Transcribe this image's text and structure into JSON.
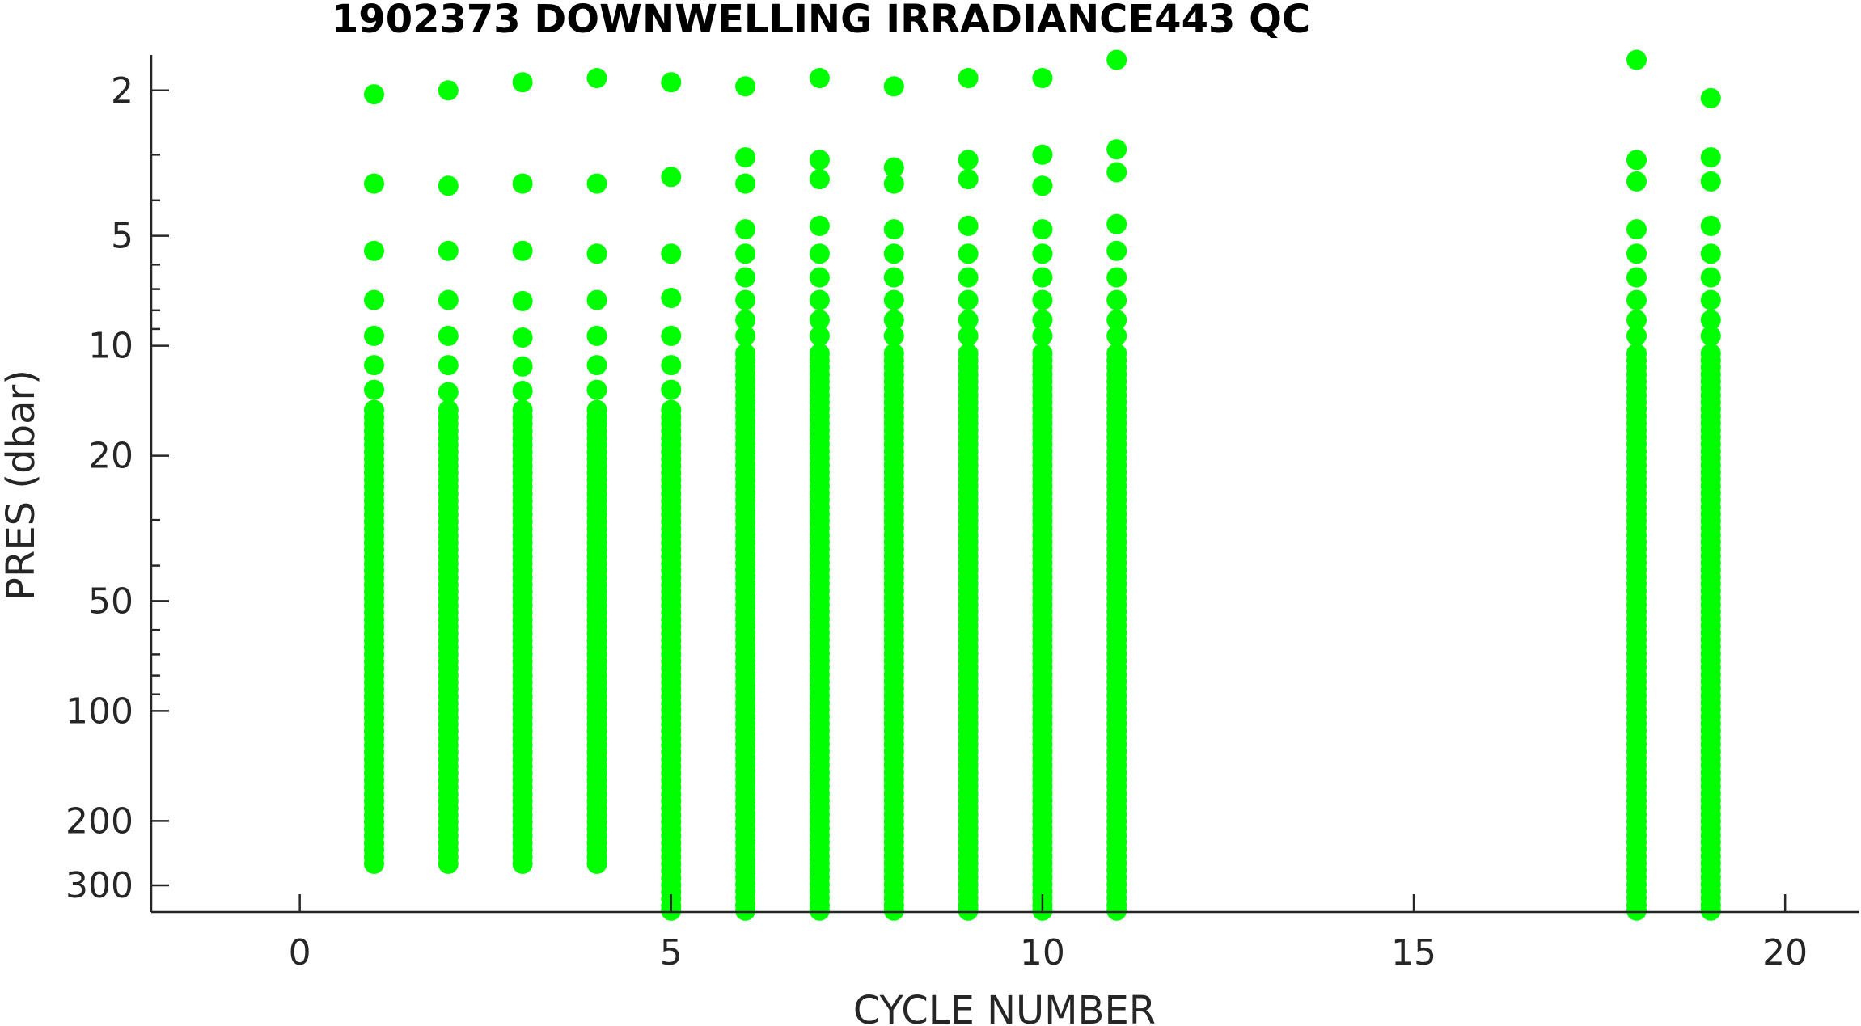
{
  "chart_data": {
    "type": "scatter",
    "title": "1902373  DOWNWELLING IRRADIANCE443 QC",
    "xlabel": "CYCLE NUMBER",
    "ylabel": "PRES (dbar)",
    "xlim": [
      -2,
      21
    ],
    "ylim": [
      1.6,
      355
    ],
    "y_scale": "log",
    "y_reversed": true,
    "x_ticks": [
      0,
      5,
      10,
      15,
      20
    ],
    "x_tick_labels": [
      "0",
      "5",
      "10",
      "15",
      "20"
    ],
    "y_ticks": [
      2,
      5,
      10,
      20,
      50,
      100,
      200,
      300
    ],
    "y_tick_labels": [
      "2",
      "5",
      "10",
      "20",
      "50",
      "100",
      "200",
      "300"
    ],
    "grid": false,
    "marker_color": "#00ff00",
    "profiles": [
      {
        "cycle": 1,
        "top_points": [
          2.05,
          3.6,
          5.5,
          7.5,
          9.4,
          11.3,
          13.2
        ],
        "dense_from": 15,
        "max_pres": 262
      },
      {
        "cycle": 2,
        "top_points": [
          2.0,
          3.65,
          5.5,
          7.5,
          9.4,
          11.3,
          13.4
        ],
        "dense_from": 15,
        "max_pres": 262
      },
      {
        "cycle": 3,
        "top_points": [
          1.9,
          3.6,
          5.5,
          7.55,
          9.5,
          11.4,
          13.3
        ],
        "dense_from": 15,
        "max_pres": 262
      },
      {
        "cycle": 4,
        "top_points": [
          1.85,
          3.6,
          5.6,
          7.5,
          9.4,
          11.3,
          13.2
        ],
        "dense_from": 15,
        "max_pres": 262
      },
      {
        "cycle": 5,
        "top_points": [
          1.9,
          3.45,
          5.6,
          7.4,
          9.4,
          11.3,
          13.2
        ],
        "dense_from": 15,
        "max_pres": 352
      },
      {
        "cycle": 6,
        "top_points": [
          1.95,
          3.05,
          3.6,
          4.8,
          5.6,
          6.5,
          7.5,
          8.5,
          9.4
        ],
        "dense_from": 10.5,
        "max_pres": 352
      },
      {
        "cycle": 7,
        "top_points": [
          1.85,
          3.1,
          3.5,
          4.7,
          5.6,
          6.5,
          7.5,
          8.5,
          9.4
        ],
        "dense_from": 10.5,
        "max_pres": 352
      },
      {
        "cycle": 8,
        "top_points": [
          1.95,
          3.25,
          3.6,
          4.8,
          5.6,
          6.5,
          7.5,
          8.5,
          9.4
        ],
        "dense_from": 10.5,
        "max_pres": 352
      },
      {
        "cycle": 9,
        "top_points": [
          1.85,
          3.1,
          3.5,
          4.7,
          5.6,
          6.5,
          7.5,
          8.5,
          9.4
        ],
        "dense_from": 10.5,
        "max_pres": 352
      },
      {
        "cycle": 10,
        "top_points": [
          1.85,
          3.0,
          3.65,
          4.8,
          5.6,
          6.5,
          7.5,
          8.5,
          9.4
        ],
        "dense_from": 10.5,
        "max_pres": 352
      },
      {
        "cycle": 11,
        "top_points": [
          1.65,
          2.9,
          3.35,
          4.65,
          5.5,
          6.5,
          7.5,
          8.5,
          9.4
        ],
        "dense_from": 10.5,
        "max_pres": 352
      },
      {
        "cycle": 18,
        "top_points": [
          1.65,
          3.1,
          3.55,
          4.8,
          5.6,
          6.5,
          7.5,
          8.5,
          9.4
        ],
        "dense_from": 10.5,
        "max_pres": 352
      },
      {
        "cycle": 19,
        "top_points": [
          2.1,
          3.05,
          3.55,
          4.7,
          5.6,
          6.5,
          7.5,
          8.5,
          9.4
        ],
        "dense_from": 10.5,
        "max_pres": 352
      }
    ]
  }
}
